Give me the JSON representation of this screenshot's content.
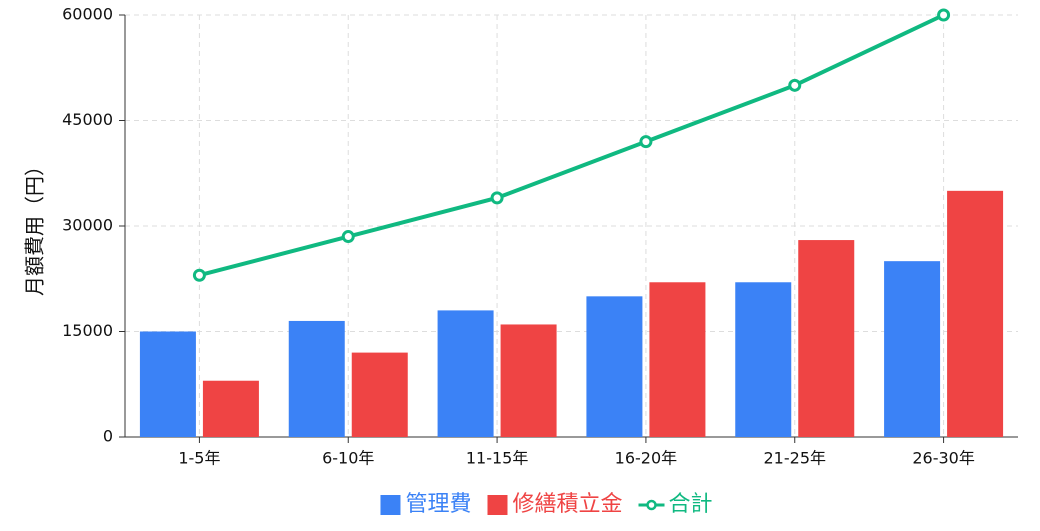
{
  "chart_data": {
    "type": "bar",
    "y_label": "月額費用（円）",
    "categories": [
      "1-5年",
      "6-10年",
      "11-15年",
      "16-20年",
      "21-25年",
      "26-30年"
    ],
    "series": [
      {
        "name": "管理費",
        "color": "#3b82f6",
        "type": "bar",
        "values": [
          15000,
          16500,
          18000,
          20000,
          22000,
          25000
        ]
      },
      {
        "name": "修繕積立金",
        "color": "#ef4444",
        "type": "bar",
        "values": [
          8000,
          12000,
          16000,
          22000,
          28000,
          35000
        ]
      },
      {
        "name": "合計",
        "color": "#10b981",
        "type": "line",
        "values": [
          23000,
          28500,
          34000,
          42000,
          50000,
          60000
        ]
      }
    ],
    "ylim": [
      0,
      60000
    ],
    "yticks": [
      0,
      15000,
      30000,
      45000,
      60000
    ],
    "grid": true,
    "legend": "bottom"
  }
}
